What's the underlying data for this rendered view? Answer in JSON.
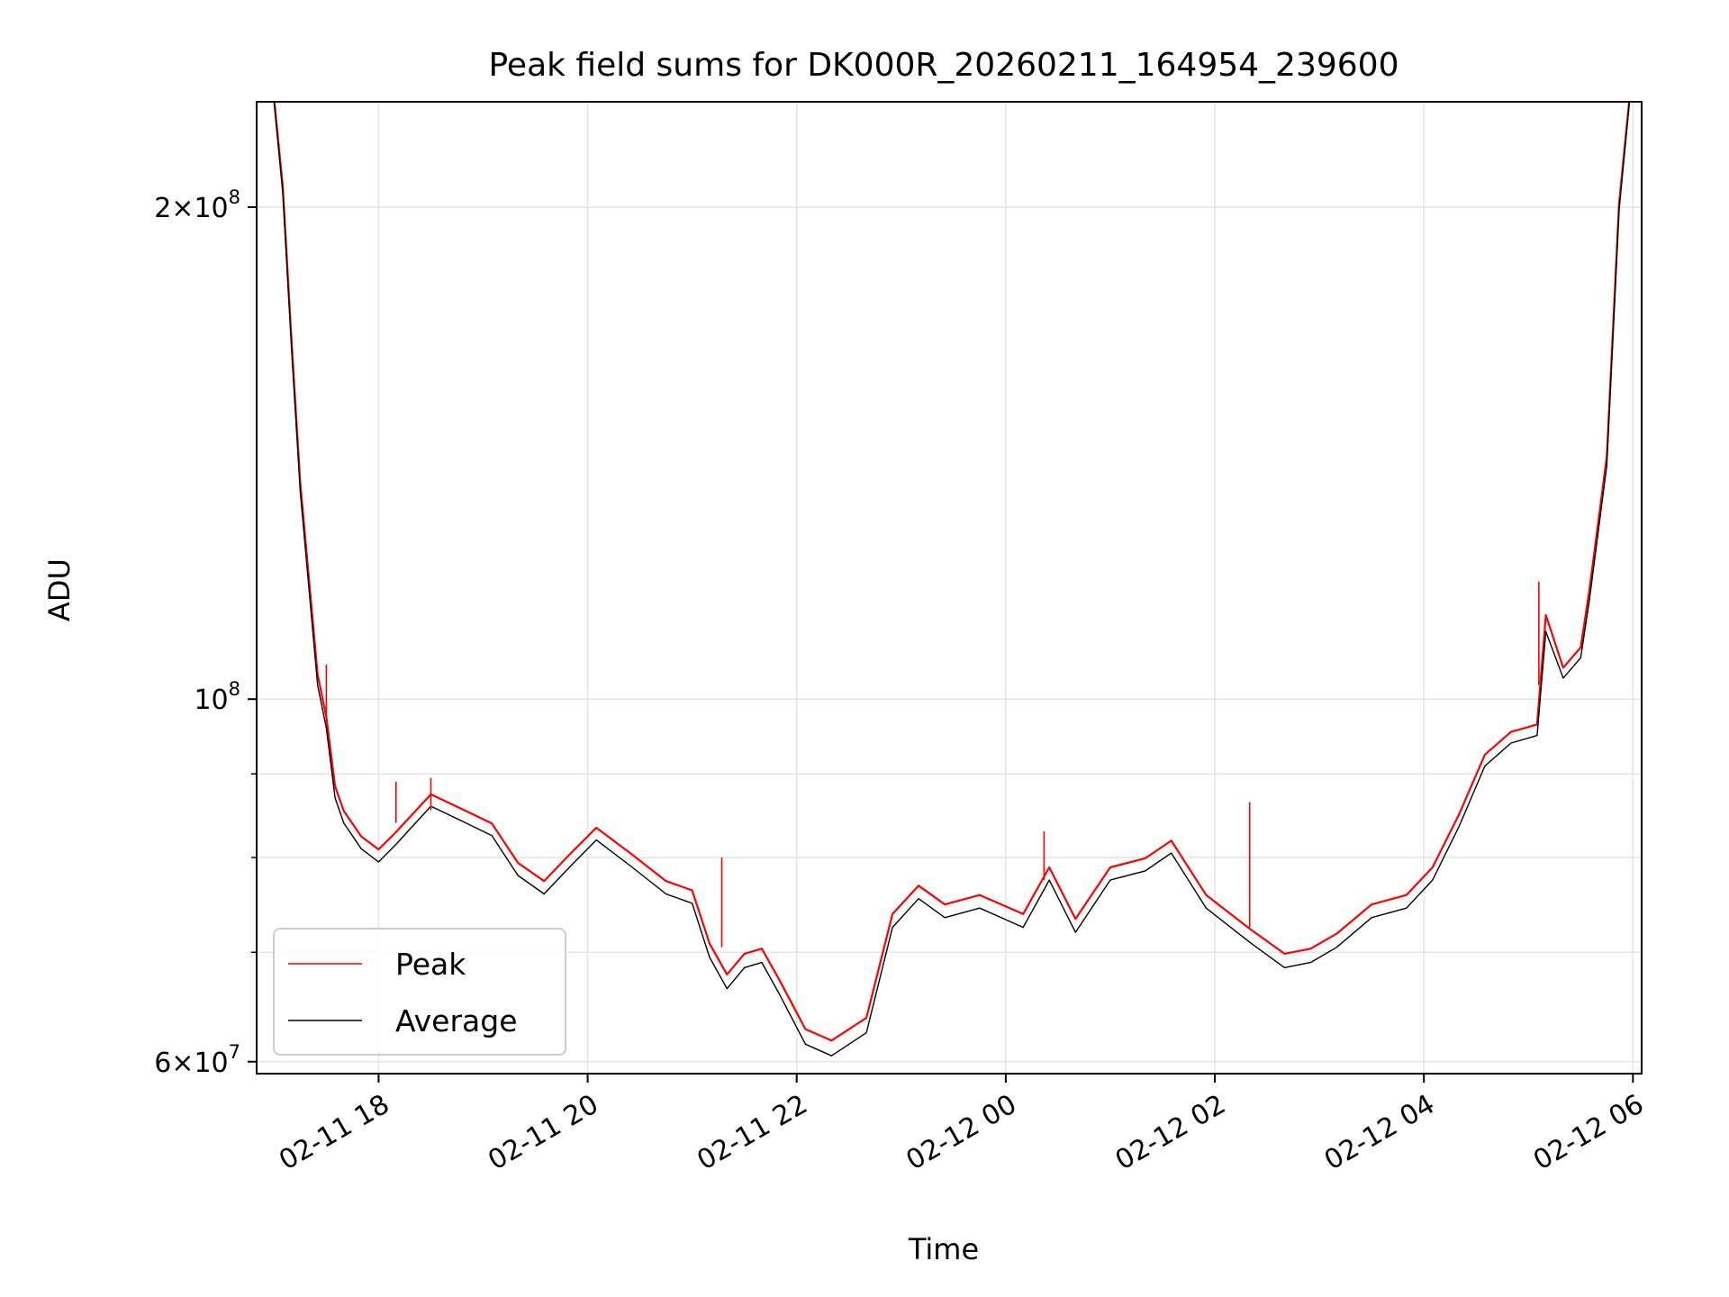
{
  "chart_data": {
    "type": "line",
    "title": "Peak field sums for DK000R_20260211_164954_239600",
    "xlabel": "Time",
    "ylabel": "ADU",
    "yscale": "log",
    "ylim": [
      59000000,
      232000000
    ],
    "xlim": [
      "2026-02-11 16:50",
      "2026-02-12 06:05"
    ],
    "grid": true,
    "legend": "lower-left",
    "x_ticks": [
      "2026-02-11 18:00",
      "2026-02-11 20:00",
      "2026-02-11 22:00",
      "2026-02-12 00:00",
      "2026-02-12 02:00",
      "2026-02-12 04:00",
      "2026-02-12 06:00"
    ],
    "x_tick_labels": [
      "02-11 18",
      "02-11 20",
      "02-11 22",
      "02-12 00",
      "02-12 02",
      "02-12 04",
      "02-12 06"
    ],
    "y_ticks": [
      60000000,
      100000000,
      200000000
    ],
    "y_tick_labels": [
      {
        "base": "6",
        "exp": "7"
      },
      {
        "base": "",
        "exp": "8"
      },
      {
        "base": "2",
        "exp": "8"
      }
    ],
    "y_minor_ticks": [
      70000000,
      80000000,
      90000000
    ],
    "series": [
      {
        "name": "Peak",
        "color": "#ff0000",
        "x": [
          "2026-02-11 17:00",
          "2026-02-11 17:05",
          "2026-02-11 17:10",
          "2026-02-11 17:15",
          "2026-02-11 17:20",
          "2026-02-11 17:25",
          "2026-02-11 17:30",
          "2026-02-11 17:35",
          "2026-02-11 17:40",
          "2026-02-11 17:50",
          "2026-02-11 18:00",
          "2026-02-11 18:10",
          "2026-02-11 18:30",
          "2026-02-11 18:50",
          "2026-02-11 19:05",
          "2026-02-11 19:20",
          "2026-02-11 19:35",
          "2026-02-11 19:50",
          "2026-02-11 20:05",
          "2026-02-11 20:25",
          "2026-02-11 20:45",
          "2026-02-11 21:00",
          "2026-02-11 21:10",
          "2026-02-11 21:20",
          "2026-02-11 21:30",
          "2026-02-11 21:40",
          "2026-02-11 21:50",
          "2026-02-11 22:05",
          "2026-02-11 22:20",
          "2026-02-11 22:40",
          "2026-02-11 22:55",
          "2026-02-11 23:10",
          "2026-02-11 23:25",
          "2026-02-11 23:45",
          "2026-02-12 00:10",
          "2026-02-12 00:25",
          "2026-02-12 00:40",
          "2026-02-12 01:00",
          "2026-02-12 01:20",
          "2026-02-12 01:35",
          "2026-02-12 01:55",
          "2026-02-12 02:20",
          "2026-02-12 02:40",
          "2026-02-12 02:55",
          "2026-02-12 03:10",
          "2026-02-12 03:30",
          "2026-02-12 03:50",
          "2026-02-12 04:05",
          "2026-02-12 04:20",
          "2026-02-12 04:35",
          "2026-02-12 04:50",
          "2026-02-12 05:05",
          "2026-02-12 05:10",
          "2026-02-12 05:20",
          "2026-02-12 05:30",
          "2026-02-12 05:35",
          "2026-02-12 05:45",
          "2026-02-12 05:52",
          "2026-02-12 05:58"
        ],
        "values": [
          232000000,
          205000000,
          165000000,
          135000000,
          118000000,
          103000000,
          97000000,
          88000000,
          85000000,
          82000000,
          80500000,
          82500000,
          87000000,
          85000000,
          83500000,
          79000000,
          77000000,
          80000000,
          83000000,
          80000000,
          77000000,
          76000000,
          70500000,
          67500000,
          69500000,
          70000000,
          67000000,
          62500000,
          61500000,
          63500000,
          73500000,
          76500000,
          74500000,
          75500000,
          73500000,
          78500000,
          73000000,
          78500000,
          79500000,
          81500000,
          75500000,
          72000000,
          69500000,
          70000000,
          71500000,
          74500000,
          75500000,
          78500000,
          84500000,
          92000000,
          95000000,
          96000000,
          112000000,
          104000000,
          107000000,
          116000000,
          140000000,
          200000000,
          232000000
        ]
      },
      {
        "name": "Average",
        "color": "#000000",
        "x": [
          "2026-02-11 17:00",
          "2026-02-11 17:05",
          "2026-02-11 17:10",
          "2026-02-11 17:15",
          "2026-02-11 17:20",
          "2026-02-11 17:25",
          "2026-02-11 17:30",
          "2026-02-11 17:35",
          "2026-02-11 17:40",
          "2026-02-11 17:50",
          "2026-02-11 18:00",
          "2026-02-11 18:10",
          "2026-02-11 18:30",
          "2026-02-11 18:50",
          "2026-02-11 19:05",
          "2026-02-11 19:20",
          "2026-02-11 19:35",
          "2026-02-11 19:50",
          "2026-02-11 20:05",
          "2026-02-11 20:25",
          "2026-02-11 20:45",
          "2026-02-11 21:00",
          "2026-02-11 21:10",
          "2026-02-11 21:20",
          "2026-02-11 21:30",
          "2026-02-11 21:40",
          "2026-02-11 21:50",
          "2026-02-11 22:05",
          "2026-02-11 22:20",
          "2026-02-11 22:40",
          "2026-02-11 22:55",
          "2026-02-11 23:10",
          "2026-02-11 23:25",
          "2026-02-11 23:45",
          "2026-02-12 00:10",
          "2026-02-12 00:25",
          "2026-02-12 00:40",
          "2026-02-12 01:00",
          "2026-02-12 01:20",
          "2026-02-12 01:35",
          "2026-02-12 01:55",
          "2026-02-12 02:20",
          "2026-02-12 02:40",
          "2026-02-12 02:55",
          "2026-02-12 03:10",
          "2026-02-12 03:30",
          "2026-02-12 03:50",
          "2026-02-12 04:05",
          "2026-02-12 04:20",
          "2026-02-12 04:35",
          "2026-02-12 04:50",
          "2026-02-12 05:05",
          "2026-02-12 05:10",
          "2026-02-12 05:20",
          "2026-02-12 05:30",
          "2026-02-12 05:35",
          "2026-02-12 05:45",
          "2026-02-12 05:52",
          "2026-02-12 05:58"
        ],
        "values": [
          232000000,
          204000000,
          164000000,
          134000000,
          117000000,
          102000000,
          96000000,
          87000000,
          84000000,
          81000000,
          79500000,
          81500000,
          86000000,
          84000000,
          82500000,
          78000000,
          76000000,
          79000000,
          82000000,
          79000000,
          76000000,
          75000000,
          69500000,
          66500000,
          68500000,
          69000000,
          66000000,
          61500000,
          60500000,
          62500000,
          72500000,
          75500000,
          73500000,
          74500000,
          72500000,
          77500000,
          72000000,
          77500000,
          78500000,
          80500000,
          74500000,
          71000000,
          68500000,
          69000000,
          70500000,
          73500000,
          74500000,
          77500000,
          83500000,
          91000000,
          94000000,
          95000000,
          110000000,
          103000000,
          106000000,
          115000000,
          139000000,
          199000000,
          232000000
        ]
      }
    ],
    "spikes": [
      {
        "x": "2026-02-11 17:30",
        "from": 97000000,
        "to": 105000000
      },
      {
        "x": "2026-02-11 18:10",
        "from": 84000000,
        "to": 89000000
      },
      {
        "x": "2026-02-11 18:30",
        "from": 85500000,
        "to": 89500000
      },
      {
        "x": "2026-02-11 21:17",
        "from": 70500000,
        "to": 80000000
      },
      {
        "x": "2026-02-12 00:22",
        "from": 77500000,
        "to": 83000000
      },
      {
        "x": "2026-02-12 02:20",
        "from": 72500000,
        "to": 86500000
      },
      {
        "x": "2026-02-12 05:06",
        "from": 102000000,
        "to": 118000000
      }
    ]
  }
}
